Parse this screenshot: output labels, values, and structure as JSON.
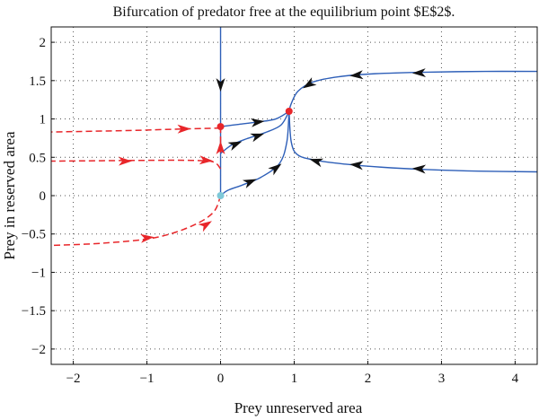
{
  "chart_data": {
    "type": "line",
    "title": "Bifurcation of predator free at the equilibrium point $E$2$.",
    "xlabel": "Prey unreserved area",
    "ylabel": "Prey in reserved area",
    "xlim": [
      -2.3,
      4.3
    ],
    "ylim": [
      -2.2,
      2.2
    ],
    "x_ticks": [
      -2,
      -1,
      0,
      1,
      2,
      3,
      4
    ],
    "y_ticks": [
      -2,
      -1.5,
      -1,
      -0.5,
      0,
      0.5,
      1,
      1.5,
      2
    ],
    "x_tick_labels": [
      "−2",
      "−1",
      "0",
      "1",
      "2",
      "3",
      "4"
    ],
    "y_tick_labels": [
      "−2",
      "−1.5",
      "−1",
      "−0.5",
      "0",
      "0.5",
      "1",
      "1.5",
      "2"
    ],
    "grid": true,
    "colors": {
      "solid_trajectory": "#2e5fb8",
      "dashed_trajectory": "#e8262a",
      "solid_arrow": "#111111",
      "dashed_arrow": "#e8262a",
      "equilibrium_red": "#e8262a",
      "equilibrium_origin": "#7ec8d8"
    },
    "series": [
      {
        "style": "solid",
        "points": [
          [
            0,
            2.2
          ],
          [
            0,
            1.6
          ],
          [
            0,
            1.2
          ],
          [
            0,
            0.9
          ]
        ],
        "arrows_at": [
          [
            0,
            1.45
          ]
        ]
      },
      {
        "style": "solid",
        "points": [
          [
            4.3,
            1.62
          ],
          [
            3.6,
            1.62
          ],
          [
            2.8,
            1.61
          ],
          [
            2.1,
            1.59
          ],
          [
            1.6,
            1.55
          ],
          [
            1.25,
            1.48
          ],
          [
            1.05,
            1.36
          ],
          [
            0.96,
            1.2
          ],
          [
            0.93,
            1.1
          ]
        ],
        "arrows_at": [
          [
            2.7,
            1.6
          ],
          [
            1.85,
            1.57
          ],
          [
            1.2,
            1.45
          ]
        ]
      },
      {
        "style": "solid",
        "points": [
          [
            4.3,
            0.31
          ],
          [
            3.5,
            0.32
          ],
          [
            2.8,
            0.34
          ],
          [
            2.2,
            0.37
          ],
          [
            1.7,
            0.41
          ],
          [
            1.3,
            0.46
          ],
          [
            1.05,
            0.53
          ],
          [
            0.96,
            0.7
          ],
          [
            0.93,
            1.1
          ]
        ],
        "arrows_at": [
          [
            2.7,
            0.35
          ],
          [
            1.85,
            0.4
          ],
          [
            1.3,
            0.45
          ]
        ]
      },
      {
        "style": "solid",
        "points": [
          [
            0,
            0.9
          ],
          [
            0.25,
            0.93
          ],
          [
            0.5,
            0.96
          ],
          [
            0.75,
            1.0
          ],
          [
            0.93,
            1.1
          ]
        ],
        "arrows_at": [
          [
            0.5,
            0.96
          ]
        ]
      },
      {
        "style": "solid",
        "points": [
          [
            0,
            0.55
          ],
          [
            0.15,
            0.66
          ],
          [
            0.35,
            0.74
          ],
          [
            0.6,
            0.82
          ],
          [
            0.82,
            0.92
          ],
          [
            0.93,
            1.1
          ]
        ],
        "arrows_at": [
          [
            0.2,
            0.67
          ],
          [
            0.5,
            0.78
          ]
        ]
      },
      {
        "style": "solid",
        "points": [
          [
            0,
            0
          ],
          [
            0.1,
            0.07
          ],
          [
            0.3,
            0.14
          ],
          [
            0.55,
            0.24
          ],
          [
            0.8,
            0.42
          ],
          [
            0.9,
            0.7
          ],
          [
            0.93,
            1.1
          ]
        ],
        "arrows_at": [
          [
            0.4,
            0.18
          ],
          [
            0.75,
            0.36
          ]
        ]
      },
      {
        "style": "solid",
        "points": [
          [
            0,
            0
          ],
          [
            0,
            0.3
          ],
          [
            0,
            0.55
          ],
          [
            0,
            0.9
          ]
        ],
        "arrows_at": []
      },
      {
        "style": "dashed",
        "points": [
          [
            0,
            0.88
          ],
          [
            -0.5,
            0.87
          ],
          [
            -1.2,
            0.85
          ],
          [
            -2.3,
            0.83
          ]
        ],
        "arrows_at": [
          [
            -0.5,
            0.87
          ]
        ]
      },
      {
        "style": "dashed",
        "points": [
          [
            0,
            0.35
          ],
          [
            -0.1,
            0.44
          ],
          [
            -0.4,
            0.46
          ],
          [
            -1,
            0.46
          ],
          [
            -2.3,
            0.45
          ]
        ],
        "arrows_at": [
          [
            -0.2,
            0.46
          ],
          [
            -1.3,
            0.45
          ]
        ]
      },
      {
        "style": "dashed",
        "points": [
          [
            0,
            0
          ],
          [
            -0.1,
            -0.22
          ],
          [
            -0.4,
            -0.4
          ],
          [
            -0.9,
            -0.55
          ],
          [
            -1.6,
            -0.62
          ],
          [
            -2.3,
            -0.65
          ]
        ],
        "arrows_at": [
          [
            -0.2,
            -0.38
          ],
          [
            -1.0,
            -0.55
          ]
        ]
      },
      {
        "style": "dashed",
        "points": [
          [
            0,
            0.9
          ],
          [
            0,
            0.55
          ]
        ],
        "arrows_at": [
          [
            0,
            0.62
          ]
        ]
      }
    ],
    "equilibria": [
      {
        "x": 0.93,
        "y": 1.1,
        "color": "red"
      },
      {
        "x": 0,
        "y": 0.9,
        "color": "red"
      },
      {
        "x": 0,
        "y": 0,
        "color": "origin"
      }
    ]
  }
}
